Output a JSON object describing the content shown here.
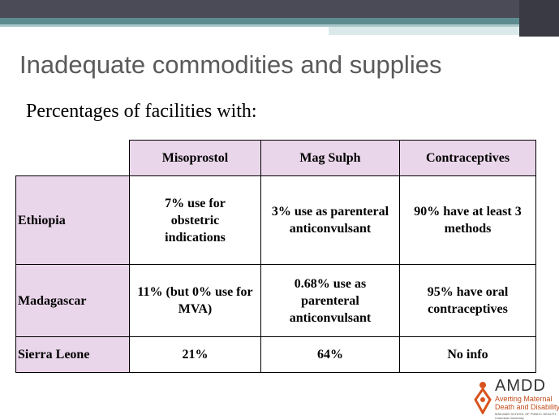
{
  "header": {
    "title": "Inadequate commodities and supplies",
    "subtitle": "Percentages of facilities with:"
  },
  "table": {
    "columns": [
      "Misoprostol",
      "Mag Sulph",
      "Contraceptives"
    ],
    "rows": [
      [
        "Ethiopia",
        "7% use for obstetric indications",
        "3% use as parenteral anticonvulsant",
        "90% have at least 3 methods"
      ],
      [
        "Madagascar",
        "11% (but 0% use for MVA)",
        "0.68% use as parenteral anticonvulsant",
        "95% have oral contraceptives"
      ],
      [
        "Sierra Leone",
        "21%",
        "64%",
        "No info"
      ]
    ]
  },
  "logo": {
    "name": "AMDD",
    "lines": [
      "Averting Maternal",
      "Death and Disability",
      "MAILMAN SCHOOL OF PUBLIC HEALTH",
      "Columbia University"
    ]
  }
}
